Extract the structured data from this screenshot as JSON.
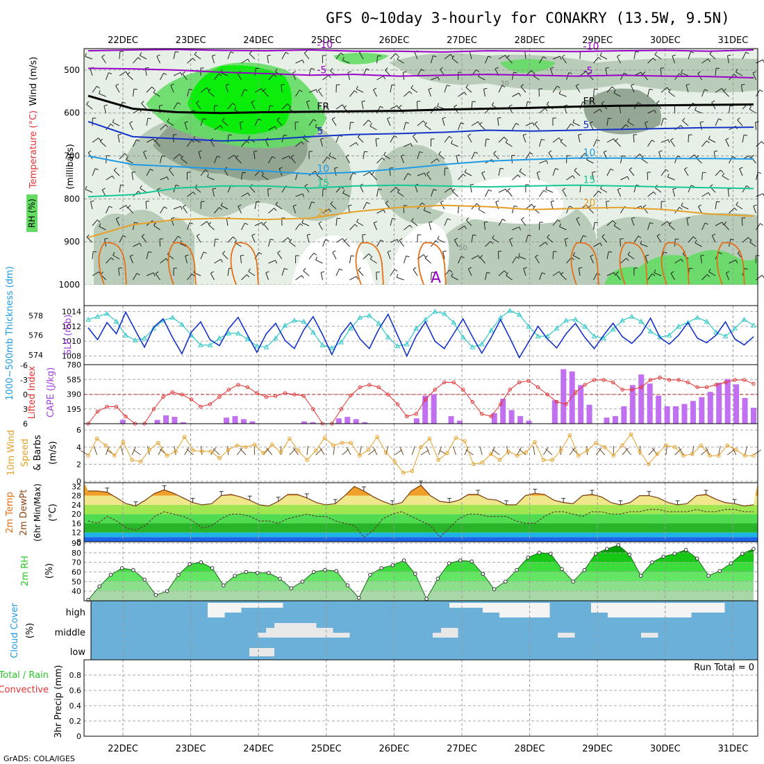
{
  "title": "GFS 0~10day 3-hourly for CONAKRY (13.5W, 9.5N)",
  "footer": "GrADS: COLA/IGES",
  "dates": [
    "22DEC",
    "23DEC",
    "24DEC",
    "25DEC",
    "26DEC",
    "27DEC",
    "28DEC",
    "29DEC",
    "30DEC",
    "31DEC"
  ],
  "colors": {
    "purple": "#9b00c8",
    "violet": "#a040e0",
    "darkblue": "#1432c8",
    "midblue": "#1e64e6",
    "skyblue": "#1e9ae6",
    "teal": "#14c896",
    "orange": "#e6a028",
    "darkorange": "#e66e14",
    "cyan": "#32c8c8",
    "red": "#e63232",
    "green": "#28c828",
    "rh_light": "#e6f0e6",
    "rh_mid": "#b4c8b4",
    "rh_dark": "#8ca08c",
    "rh_green": "#64dc64",
    "rh_bright": "#00f000",
    "cloud": "#6ab0d8",
    "cloudwhite": "#f4f4f4"
  },
  "chart_data": [
    {
      "panel": "upper-air",
      "type": "heatmap",
      "ylabel": "(millibars)",
      "legend_labels": [
        "RH (%)",
        "Temperature (°C)",
        "Wind (m/s)"
      ],
      "y_ticks": [
        500,
        600,
        700,
        800,
        900,
        1000
      ],
      "ylim": [
        450,
        1000
      ],
      "temperature_contours": [
        {
          "label": "-10",
          "color": "purple",
          "levels": [
            455,
            453,
            452,
            454,
            455,
            453,
            456,
            456,
            458,
            455,
            456,
            457,
            455,
            454,
            456,
            453
          ]
        },
        {
          "label": "-5",
          "color": "purple",
          "levels": [
            496,
            497,
            500,
            505,
            508,
            512,
            510,
            514,
            512,
            510,
            512,
            514,
            512,
            514,
            515,
            518
          ]
        },
        {
          "label": "FR",
          "color": "black",
          "levels": [
            560,
            590,
            598,
            600,
            598,
            597,
            596,
            595,
            592,
            590,
            588,
            585,
            583,
            582,
            581,
            580
          ]
        },
        {
          "label": "5",
          "color": "darkblue",
          "levels": [
            620,
            655,
            660,
            665,
            662,
            655,
            650,
            648,
            645,
            640,
            642,
            640,
            638,
            636,
            634,
            633
          ]
        },
        {
          "label": "10",
          "color": "skyblue",
          "levels": [
            700,
            720,
            725,
            730,
            735,
            742,
            738,
            730,
            720,
            712,
            708,
            705,
            705,
            706,
            706,
            707
          ]
        },
        {
          "label": "15",
          "color": "teal",
          "levels": [
            795,
            790,
            775,
            770,
            770,
            775,
            770,
            768,
            770,
            772,
            770,
            768,
            770,
            772,
            774,
            776
          ]
        },
        {
          "label": "20",
          "color": "orange",
          "levels": [
            890,
            860,
            848,
            845,
            848,
            845,
            830,
            820,
            815,
            818,
            825,
            822,
            820,
            825,
            835,
            840
          ]
        }
      ],
      "contour_labels": [
        "-10",
        "-5",
        "FR",
        "5",
        "10",
        "15",
        "20",
        "A",
        "30",
        "50"
      ]
    },
    {
      "panel": "slp-thickness",
      "type": "line",
      "left_label": "1000~500mb Thickness (dm)",
      "right_label": "SLP (mb)",
      "left_ticks": [
        574,
        576,
        578
      ],
      "right_ticks": [
        1008,
        1010,
        1012,
        1014
      ],
      "ylim_slp": [
        1007.5,
        1014.5
      ],
      "series": [
        {
          "name": "SLP (mb)",
          "color": "darkblue",
          "values": [
            1011.8,
            1010.2,
            1012.5,
            1011.0,
            1013.9,
            1011.5,
            1009.2,
            1011.9,
            1013.0,
            1010.5,
            1008.3,
            1011.2,
            1012.6,
            1010.2,
            1009.4,
            1011.7,
            1013.2,
            1010.8,
            1008.5,
            1011.0,
            1012.4,
            1010.1,
            1009.0,
            1011.5,
            1013.3,
            1010.9,
            1008.2,
            1010.9,
            1012.5,
            1010.3,
            1009.0,
            1011.6,
            1013.6,
            1010.8,
            1008.0,
            1010.7,
            1012.6,
            1010.0,
            1009.0,
            1011.0,
            1013.0,
            1010.6,
            1008.4,
            1010.5,
            1012.9,
            1010.4,
            1007.8,
            1009.9,
            1012.0,
            1010.3,
            1009.1,
            1011.0,
            1012.4,
            1010.5,
            1009.0,
            1010.8,
            1012.4,
            1010.6,
            1009.7,
            1011.0,
            1013.1,
            1010.5,
            1009.6,
            1010.8,
            1012.5,
            1010.4,
            1009.8,
            1010.8,
            1012.6,
            1010.3,
            1009.5,
            1010.6
          ]
        },
        {
          "name": "Thickness (dm)",
          "color": "cyan",
          "values": [
            577.6,
            577.9,
            578.2,
            577.4,
            576.0,
            575.5,
            575.7,
            576.7,
            577.5,
            577.8,
            577.1,
            576.0,
            575.0,
            575.0,
            575.7,
            576.2,
            576.2,
            575.6,
            574.9,
            574.8,
            575.7,
            577.0,
            577.5,
            577.4,
            576.3,
            575.0,
            574.7,
            575.3,
            576.7,
            577.8,
            578.0,
            577.2,
            575.8,
            574.9,
            575.1,
            576.7,
            577.6,
            578.4,
            578.2,
            577.3,
            575.8,
            574.8,
            575.1,
            576.5,
            577.8,
            578.5,
            578.1,
            576.9,
            575.9,
            575.9,
            576.7,
            577.5,
            577.6,
            576.9,
            575.9,
            575.7,
            576.6,
            577.5,
            577.9,
            577.4,
            576.4,
            575.8,
            576.0,
            576.9,
            577.3,
            577.8,
            577.4,
            576.3,
            575.9,
            576.7,
            577.6,
            577.0
          ]
        }
      ]
    },
    {
      "panel": "lifted-cape",
      "type": "bar",
      "left_label": "Lifted Index",
      "right_label": "CAPE (J/kg)",
      "left_ticks": [
        -6,
        -3,
        0,
        3,
        6
      ],
      "right_ticks": [
        195,
        390,
        585,
        780
      ],
      "ylim_li": [
        6,
        -6
      ],
      "ylim_cape": [
        0,
        780
      ],
      "series": [
        {
          "name": "Lifted Index",
          "color": "red",
          "values": [
            6,
            3.5,
            2.5,
            2.5,
            4.5,
            6,
            6,
            3.0,
            0.5,
            -0.5,
            0,
            1.0,
            2.5,
            2.0,
            0.5,
            -1.0,
            -2.0,
            -1.5,
            -0.3,
            0.5,
            0.3,
            -0.3,
            0,
            0.3,
            3.0,
            6,
            6,
            3.0,
            0.2,
            -1.5,
            -2.0,
            -1.5,
            0,
            2.0,
            4.5,
            4.0,
            1.0,
            -1.0,
            -2.5,
            -2.5,
            -1.0,
            1.5,
            4.0,
            4.5,
            2.0,
            -1.0,
            -2.5,
            -2.8,
            -1.5,
            0,
            1.5,
            2.0,
            -0.5,
            -2.0,
            -3.0,
            -3.0,
            -2.5,
            -1.0,
            -1.0,
            -1.5,
            -3.0,
            -3.5,
            -3.0,
            -3.0,
            -2.5,
            -1.5,
            -1.5,
            -2.0,
            -2.5,
            -3.0,
            -3.0,
            -2.2
          ]
        },
        {
          "name": "CAPE (J/kg)",
          "color": "violet",
          "values": [
            0,
            0,
            0,
            0,
            50,
            0,
            0,
            0,
            50,
            110,
            90,
            20,
            0,
            0,
            0,
            0,
            80,
            100,
            60,
            30,
            0,
            0,
            0,
            0,
            0,
            30,
            20,
            0,
            0,
            70,
            90,
            60,
            20,
            0,
            0,
            0,
            0,
            0,
            70,
            370,
            390,
            0,
            100,
            40,
            0,
            0,
            0,
            140,
            330,
            180,
            100,
            40,
            0,
            0,
            310,
            720,
            690,
            510,
            250,
            0,
            80,
            100,
            230,
            510,
            650,
            530,
            370,
            230,
            230,
            260,
            300,
            350,
            420,
            540,
            590,
            520,
            340,
            210
          ]
        }
      ]
    },
    {
      "panel": "wind10m",
      "type": "line",
      "label": "10m Wind Speed & Barbs (m/s)",
      "y_ticks": [
        0,
        2,
        4,
        6
      ],
      "ylim": [
        0,
        6.5
      ],
      "series": [
        {
          "name": "10m Wind Speed",
          "color": "orange",
          "values": [
            3.0,
            5.0,
            4.2,
            3.0,
            4.6,
            2.5,
            2.3,
            3.7,
            4.5,
            3.0,
            3.5,
            5.2,
            3.6,
            3.5,
            3.5,
            2.7,
            3.7,
            4.2,
            4.0,
            4.3,
            3.3,
            4.3,
            3.4,
            5.0,
            3.6,
            2.5,
            3.6,
            5.1,
            4.2,
            4.5,
            4.5,
            3.0,
            3.7,
            5.2,
            3.4,
            2.3,
            1.0,
            1.2,
            4.0,
            5.0,
            2.5,
            3.3,
            5.1,
            4.7,
            2.0,
            2.2,
            3.2,
            2.5,
            3.5,
            3.0,
            3.4,
            4.6,
            2.5,
            2.5,
            3.6,
            5.4,
            3.0,
            3.6,
            4.5,
            4.0,
            3.0,
            4.2,
            5.5,
            3.5,
            2.0,
            3.2,
            4.2,
            4.0,
            3.0,
            3.2,
            4.2,
            3.0,
            3.0,
            4.2,
            3.7,
            3.0,
            3.0
          ]
        }
      ]
    },
    {
      "panel": "temp2m",
      "type": "area",
      "label": "2m Temp / 2m DewPt / (6hr Min/Max) (°C)",
      "y_ticks": [
        8,
        12,
        16,
        20,
        24,
        28,
        32
      ],
      "ylim": [
        8,
        33
      ],
      "series": [
        {
          "name": "2m Temp",
          "color": "darkorange",
          "values": [
            30,
            30,
            29.5,
            27,
            24.5,
            23.5,
            26,
            29,
            30.5,
            29,
            27,
            25,
            24,
            24.5,
            28,
            28.5,
            27.5,
            26,
            24,
            23.5,
            25.5,
            28.5,
            28.5,
            27,
            25,
            24,
            24.5,
            28,
            32,
            30,
            27.5,
            25.5,
            24,
            25,
            30,
            32.5,
            28,
            25.5,
            25,
            26,
            28.5,
            28.5,
            26.5,
            26,
            24,
            24,
            28,
            29,
            28.5,
            26,
            25,
            24.5,
            28,
            28.5,
            27.5,
            25,
            24,
            25,
            28,
            28,
            27,
            25,
            24,
            24.5,
            28,
            28.5,
            26.5,
            25,
            24.5,
            23.5,
            24
          ]
        },
        {
          "name": "2m DewPt",
          "color": "black",
          "values": [
            17,
            16,
            19,
            17,
            14,
            13,
            15,
            19,
            21,
            20,
            19,
            17,
            14,
            15,
            18,
            20,
            20,
            19,
            17,
            17,
            16,
            18,
            19,
            20,
            19,
            19,
            17,
            16,
            15,
            10,
            13,
            18,
            20,
            21,
            19,
            17,
            15,
            10,
            14,
            18,
            20,
            20,
            19,
            19,
            19,
            17,
            16,
            16,
            19,
            21,
            21,
            20,
            19,
            21,
            21,
            20,
            20,
            21,
            21,
            22,
            22,
            21,
            21,
            21,
            22,
            21,
            21,
            22,
            22,
            21,
            21
          ]
        }
      ]
    },
    {
      "panel": "rh2m",
      "type": "area",
      "label": "2m RH (%)",
      "y_ticks": [
        40,
        50,
        60,
        70,
        80,
        90
      ],
      "ylim": [
        30,
        90
      ],
      "series": [
        {
          "name": "2m RH",
          "color": "green",
          "values": [
            31,
            45,
            57,
            64,
            62,
            52,
            36,
            40,
            57,
            68,
            70,
            64,
            46,
            56,
            60,
            59,
            59,
            53,
            43,
            50,
            60,
            62,
            61,
            46,
            33,
            57,
            64,
            67,
            72,
            58,
            32,
            53,
            69,
            72,
            71,
            58,
            42,
            50,
            62,
            75,
            80,
            79,
            63,
            50,
            62,
            79,
            84,
            88,
            78,
            56,
            70,
            76,
            79,
            83,
            74,
            56,
            61,
            69,
            79,
            84
          ]
        }
      ]
    },
    {
      "panel": "cloud",
      "type": "heatmap",
      "label": "Cloud Cover (%)",
      "y_labels": [
        "high",
        "middle",
        "low"
      ]
    },
    {
      "panel": "precip",
      "type": "line",
      "left_label": "Total / Rain",
      "left_label2": "Convective",
      "ylabel": "3hr Precip (mm)",
      "y_ticks": [
        0,
        0.2,
        0.4,
        0.6,
        0.8
      ],
      "ylim": [
        0,
        1
      ],
      "run_total": "Run Total = 0",
      "series": [
        {
          "name": "3hr Precip",
          "values": [
            0
          ]
        }
      ]
    }
  ]
}
